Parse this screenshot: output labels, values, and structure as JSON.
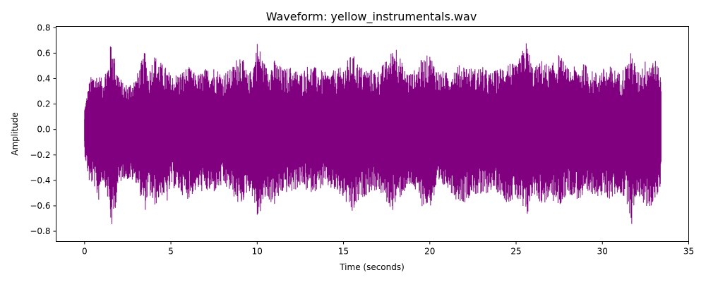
{
  "chart_data": {
    "type": "line",
    "title": "Waveform: yellow_instrumentals.wav",
    "xlabel": "Time (seconds)",
    "ylabel": "Amplitude",
    "xlim": [
      -1.65,
      35
    ],
    "ylim": [
      -0.88,
      0.81
    ],
    "x_ticks": [
      0,
      5,
      10,
      15,
      20,
      25,
      30,
      35
    ],
    "x_tick_labels": [
      "0",
      "5",
      "10",
      "15",
      "20",
      "25",
      "30",
      "35"
    ],
    "y_ticks": [
      0.8,
      0.6,
      0.4,
      0.2,
      0.0,
      -0.2,
      -0.4,
      -0.6,
      -0.8
    ],
    "y_tick_labels": [
      "0.8",
      "0.6",
      "0.4",
      "0.2",
      "0.0",
      "−0.2",
      "−0.4",
      "−0.6",
      "−0.8"
    ],
    "grid": false,
    "series": [
      {
        "color": "#800080",
        "duration_seconds": 33.4,
        "envelope_upper": {
          "x": [
            0,
            0.3,
            0.5,
            0.8,
            1.0,
            1.2,
            1.4,
            1.55,
            1.7,
            1.9,
            2.2,
            2.5,
            3.0,
            3.5,
            3.7,
            4.0,
            4.5,
            4.8,
            5.0,
            5.5,
            6.0,
            6.5,
            7.0,
            7.5,
            8.0,
            8.5,
            9.0,
            9.5,
            9.8,
            10.0,
            10.5,
            11.0,
            11.5,
            12.0,
            12.5,
            13.0,
            13.5,
            14.0,
            14.5,
            15.0,
            15.5,
            16.0,
            16.5,
            17.0,
            17.5,
            17.8,
            18.0,
            18.5,
            19.0,
            19.5,
            20.0,
            20.5,
            21.0,
            21.5,
            22.0,
            22.5,
            23.0,
            23.5,
            24.0,
            24.5,
            25.0,
            25.6,
            26.0,
            26.5,
            27.0,
            27.5,
            28.0,
            28.5,
            29.0,
            29.5,
            30.0,
            30.5,
            31.0,
            31.5,
            31.7,
            32.0,
            32.5,
            33.0,
            33.4
          ],
          "y": [
            0.18,
            0.4,
            0.45,
            0.44,
            0.4,
            0.48,
            0.55,
            0.73,
            0.6,
            0.48,
            0.37,
            0.36,
            0.42,
            0.62,
            0.45,
            0.6,
            0.52,
            0.48,
            0.43,
            0.45,
            0.5,
            0.43,
            0.48,
            0.5,
            0.45,
            0.48,
            0.62,
            0.42,
            0.55,
            0.7,
            0.5,
            0.55,
            0.48,
            0.5,
            0.45,
            0.52,
            0.48,
            0.45,
            0.47,
            0.5,
            0.6,
            0.5,
            0.48,
            0.47,
            0.55,
            0.62,
            0.7,
            0.48,
            0.45,
            0.55,
            0.6,
            0.47,
            0.45,
            0.5,
            0.52,
            0.48,
            0.5,
            0.45,
            0.48,
            0.55,
            0.5,
            0.7,
            0.48,
            0.55,
            0.5,
            0.6,
            0.48,
            0.5,
            0.52,
            0.45,
            0.48,
            0.5,
            0.45,
            0.55,
            0.63,
            0.45,
            0.55,
            0.58,
            0.42
          ]
        },
        "envelope_lower": {
          "x": [
            0,
            0.3,
            0.5,
            0.8,
            1.0,
            1.2,
            1.4,
            1.55,
            1.7,
            1.9,
            2.2,
            2.5,
            3.0,
            3.5,
            3.7,
            4.0,
            4.5,
            4.8,
            5.0,
            5.5,
            6.0,
            6.5,
            7.0,
            7.5,
            8.0,
            8.5,
            9.0,
            9.5,
            9.8,
            10.0,
            10.5,
            11.0,
            11.5,
            12.0,
            12.5,
            13.0,
            13.5,
            14.0,
            14.5,
            15.0,
            15.5,
            16.0,
            16.5,
            17.0,
            17.5,
            17.8,
            18.0,
            18.5,
            19.0,
            19.5,
            20.0,
            20.5,
            21.0,
            21.5,
            22.0,
            22.5,
            23.0,
            23.5,
            24.0,
            24.5,
            25.0,
            25.6,
            26.0,
            26.5,
            27.0,
            27.5,
            28.0,
            28.5,
            29.0,
            29.5,
            30.0,
            30.5,
            31.0,
            31.5,
            31.7,
            32.0,
            32.5,
            33.0,
            33.4
          ],
          "y": [
            -0.2,
            -0.45,
            -0.42,
            -0.58,
            -0.4,
            -0.45,
            -0.6,
            -0.8,
            -0.7,
            -0.5,
            -0.38,
            -0.4,
            -0.42,
            -0.65,
            -0.5,
            -0.62,
            -0.52,
            -0.58,
            -0.45,
            -0.5,
            -0.55,
            -0.48,
            -0.5,
            -0.5,
            -0.45,
            -0.5,
            -0.62,
            -0.48,
            -0.55,
            -0.72,
            -0.55,
            -0.6,
            -0.5,
            -0.5,
            -0.45,
            -0.5,
            -0.48,
            -0.45,
            -0.5,
            -0.55,
            -0.68,
            -0.55,
            -0.5,
            -0.48,
            -0.58,
            -0.65,
            -0.6,
            -0.5,
            -0.45,
            -0.6,
            -0.62,
            -0.48,
            -0.45,
            -0.55,
            -0.58,
            -0.5,
            -0.55,
            -0.48,
            -0.5,
            -0.58,
            -0.55,
            -0.72,
            -0.5,
            -0.6,
            -0.55,
            -0.62,
            -0.5,
            -0.55,
            -0.58,
            -0.5,
            -0.55,
            -0.55,
            -0.5,
            -0.6,
            -0.76,
            -0.5,
            -0.62,
            -0.6,
            -0.45
          ]
        }
      }
    ]
  }
}
